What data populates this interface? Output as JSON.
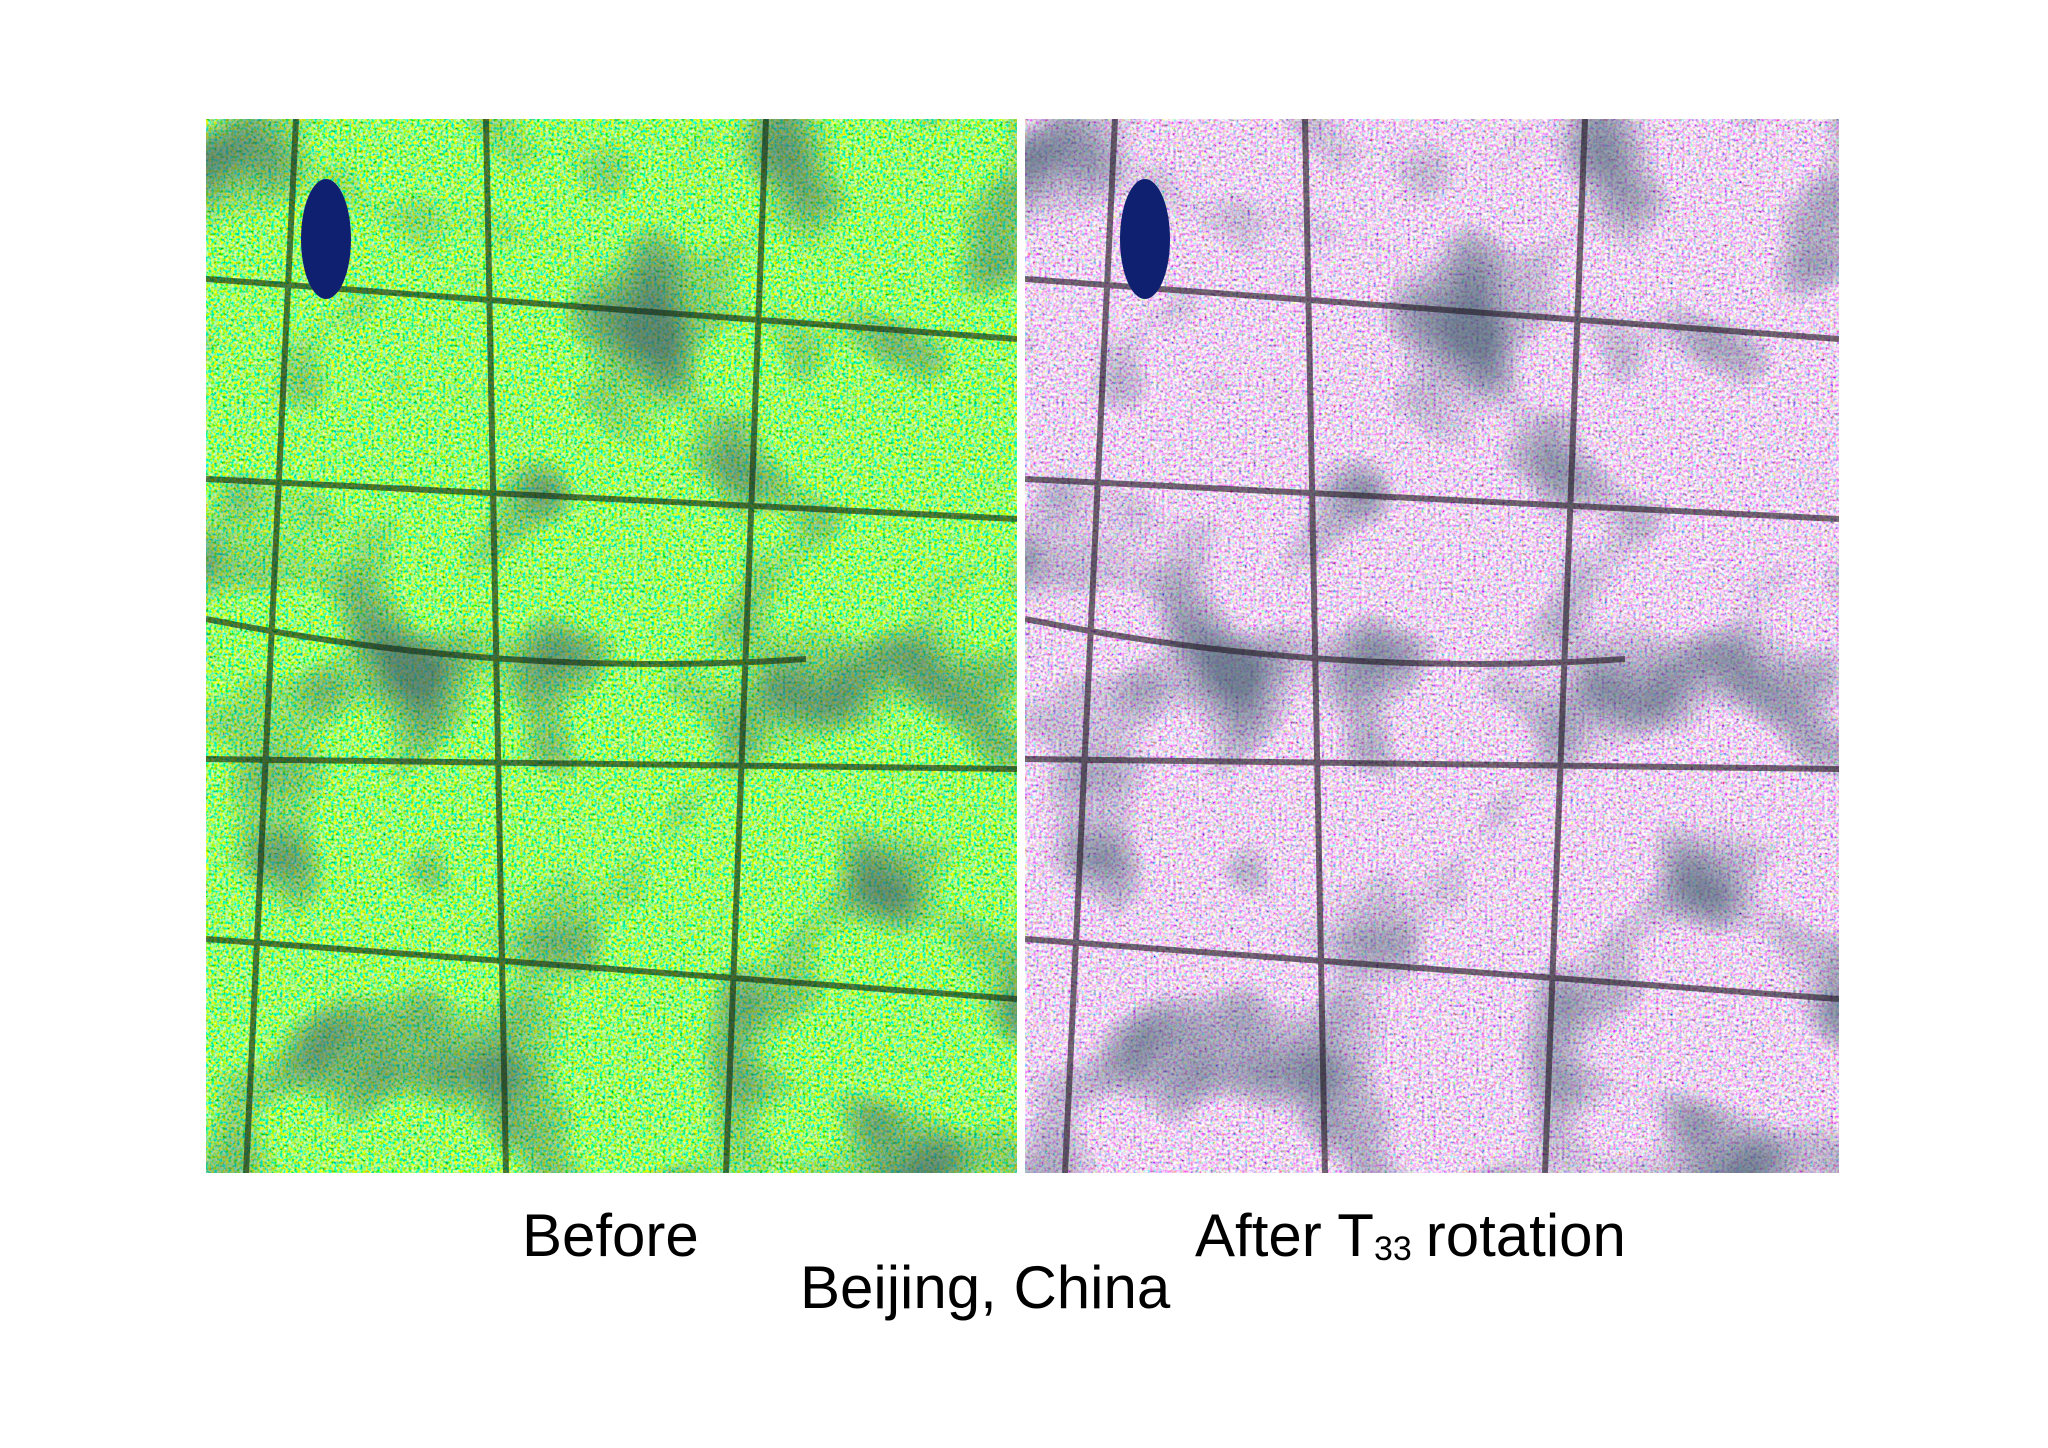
{
  "panels": {
    "left": {
      "label": "Before"
    },
    "right": {
      "prefix": "After T",
      "subscript": "33",
      "suffix": "rotation"
    }
  },
  "caption": "Beijing, China"
}
